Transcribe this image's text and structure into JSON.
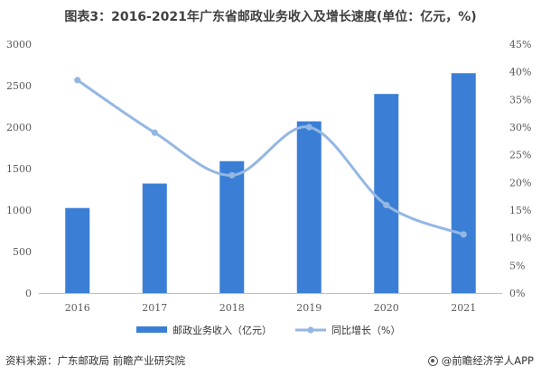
{
  "title": "图表3：2016-2021年广东省邮政业务收入及增长速度(单位：亿元，%)",
  "source": "资料来源：广东邮政局 前瞻产业研究院",
  "brand": "@前瞻经济学人APP",
  "colors": {
    "bar": "#3a7fd5",
    "line": "#94b7e3",
    "axis": "#bfbfbf"
  },
  "chart_data": {
    "type": "bar+line",
    "categories": [
      "2016",
      "2017",
      "2018",
      "2019",
      "2020",
      "2021"
    ],
    "series": [
      {
        "name": "邮政业务收入（亿元）",
        "type": "bar",
        "axis": "left",
        "values": [
          1025,
          1320,
          1590,
          2070,
          2400,
          2650
        ]
      },
      {
        "name": "同比增长（%）",
        "type": "line",
        "axis": "right",
        "smooth": true,
        "values": [
          38.5,
          29.0,
          21.3,
          30.0,
          15.9,
          10.6
        ]
      }
    ],
    "y_left": {
      "ylim": [
        0,
        3000
      ],
      "ticks": [
        "0",
        "500",
        "1000",
        "1500",
        "2000",
        "2500",
        "3000"
      ]
    },
    "y_right": {
      "ylim": [
        0,
        45
      ],
      "ticks": [
        "0%",
        "5%",
        "10%",
        "15%",
        "20%",
        "25%",
        "30%",
        "35%",
        "40%",
        "45%"
      ]
    },
    "legend": "bottom",
    "grid": false
  }
}
